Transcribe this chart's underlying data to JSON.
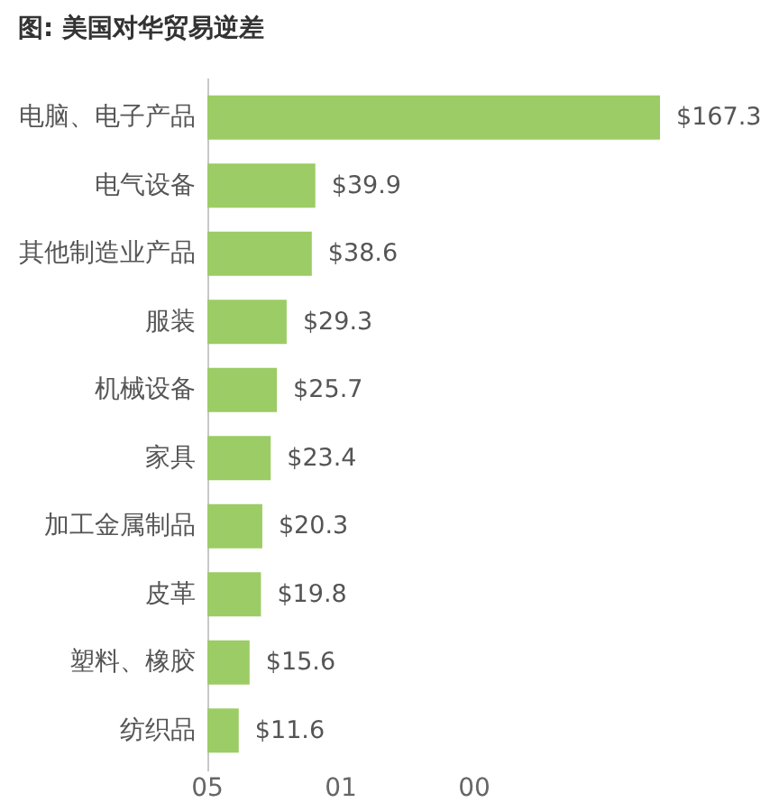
{
  "chart_data": {
    "type": "bar",
    "orientation": "horizontal",
    "title": "图: 美国对华贸易逆差",
    "categories": [
      "电脑、电子产品",
      "电气设备",
      "其他制造业产品",
      "服装",
      "机械设备",
      "家具",
      "加工金属制品",
      "皮革",
      "塑料、橡胶",
      "纺织品"
    ],
    "values": [
      167.3,
      39.9,
      38.6,
      29.3,
      25.7,
      23.4,
      20.3,
      19.8,
      15.6,
      11.6
    ],
    "value_labels": [
      "$167.3",
      "$39.9",
      "$38.6",
      "$29.3",
      "$25.7",
      "$23.4",
      "$20.3",
      "$19.8",
      "$15.6",
      "$11.6"
    ],
    "color": "#9ccc65",
    "tick_labels": "y",
    "annotations": [
      "05",
      "01",
      "00"
    ]
  }
}
